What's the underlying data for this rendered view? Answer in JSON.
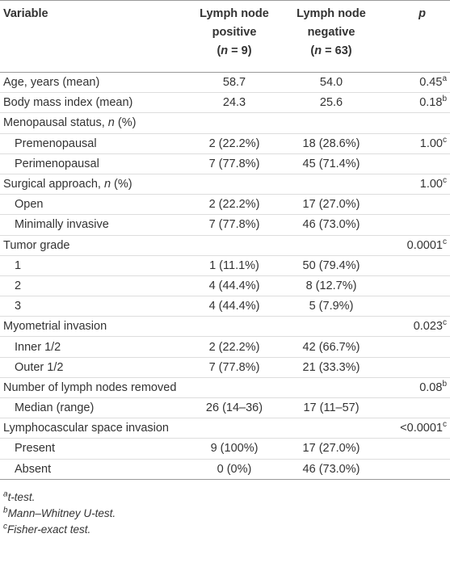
{
  "table": {
    "header": [
      [
        [
          {
            "t": "Variable"
          }
        ]
      ],
      [
        [
          {
            "t": "Lymph node"
          }
        ],
        [
          {
            "t": "positive"
          }
        ],
        [
          {
            "t": "("
          },
          {
            "t": "n",
            "i": true
          },
          {
            "t": " = 9)"
          }
        ]
      ],
      [
        [
          {
            "t": "Lymph node"
          }
        ],
        [
          {
            "t": "negative"
          }
        ],
        [
          {
            "t": "("
          },
          {
            "t": "n",
            "i": true
          },
          {
            "t": " = 63)"
          }
        ]
      ],
      [
        [
          {
            "t": "p",
            "i": true
          }
        ]
      ]
    ],
    "rows": [
      {
        "label": [
          {
            "t": "Age, years (mean)"
          }
        ],
        "pos": "58.7",
        "neg": "54.0",
        "p": {
          "v": "0.45",
          "sup": "a"
        }
      },
      {
        "label": [
          {
            "t": "Body mass index (mean)"
          }
        ],
        "pos": "24.3",
        "neg": "25.6",
        "p": {
          "v": "0.18",
          "sup": "b"
        }
      },
      {
        "label": [
          {
            "t": "Menopausal status, "
          },
          {
            "t": "n",
            "i": true
          },
          {
            "t": " (%)"
          }
        ]
      },
      {
        "label": [
          {
            "t": "Premenopausal"
          }
        ],
        "indent": true,
        "pos": "2 (22.2%)",
        "neg": "18 (28.6%)",
        "p": {
          "v": "1.00",
          "sup": "c"
        }
      },
      {
        "label": [
          {
            "t": "Perimenopausal"
          }
        ],
        "indent": true,
        "pos": "7 (77.8%)",
        "neg": "45 (71.4%)"
      },
      {
        "label": [
          {
            "t": "Surgical approach, "
          },
          {
            "t": "n",
            "i": true
          },
          {
            "t": " (%)"
          }
        ],
        "p": {
          "v": "1.00",
          "sup": "c"
        }
      },
      {
        "label": [
          {
            "t": "Open"
          }
        ],
        "indent": true,
        "pos": "2 (22.2%)",
        "neg": "17 (27.0%)"
      },
      {
        "label": [
          {
            "t": "Minimally invasive"
          }
        ],
        "indent": true,
        "pos": "7 (77.8%)",
        "neg": "46 (73.0%)"
      },
      {
        "label": [
          {
            "t": "Tumor grade"
          }
        ],
        "p": {
          "v": "0.0001",
          "sup": "c"
        }
      },
      {
        "label": [
          {
            "t": "1"
          }
        ],
        "indent": true,
        "pos": "1 (11.1%)",
        "neg": "50 (79.4%)"
      },
      {
        "label": [
          {
            "t": "2"
          }
        ],
        "indent": true,
        "pos": "4 (44.4%)",
        "neg": "8 (12.7%)"
      },
      {
        "label": [
          {
            "t": "3"
          }
        ],
        "indent": true,
        "pos": "4 (44.4%)",
        "neg": "5 (7.9%)"
      },
      {
        "label": [
          {
            "t": "Myometrial invasion"
          }
        ],
        "p": {
          "v": "0.023",
          "sup": "c"
        }
      },
      {
        "label": [
          {
            "t": "Inner 1/2"
          }
        ],
        "indent": true,
        "pos": "2 (22.2%)",
        "neg": "42 (66.7%)"
      },
      {
        "label": [
          {
            "t": "Outer 1/2"
          }
        ],
        "indent": true,
        "pos": "7 (77.8%)",
        "neg": "21 (33.3%)"
      },
      {
        "label": [
          {
            "t": "Number of lymph nodes removed"
          }
        ],
        "p": {
          "v": "0.08",
          "sup": "b"
        }
      },
      {
        "label": [
          {
            "t": "Median (range)"
          }
        ],
        "indent": true,
        "pos": "26 (14–36)",
        "neg": "17 (11–57)"
      },
      {
        "label": [
          {
            "t": "Lymphocascular space invasion"
          }
        ],
        "p": {
          "v": "<0.0001",
          "sup": "c"
        }
      },
      {
        "label": [
          {
            "t": "Present"
          }
        ],
        "indent": true,
        "pos": "9 (100%)",
        "neg": "17 (27.0%)"
      },
      {
        "label": [
          {
            "t": "Absent"
          }
        ],
        "indent": true,
        "pos": "0 (0%)",
        "neg": "46 (73.0%)"
      }
    ],
    "footnotes": [
      {
        "sup": "a",
        "text": "t-test."
      },
      {
        "sup": "b",
        "text": "Mann–Whitney U-test."
      },
      {
        "sup": "c",
        "text": "Fisher-exact test."
      }
    ]
  }
}
